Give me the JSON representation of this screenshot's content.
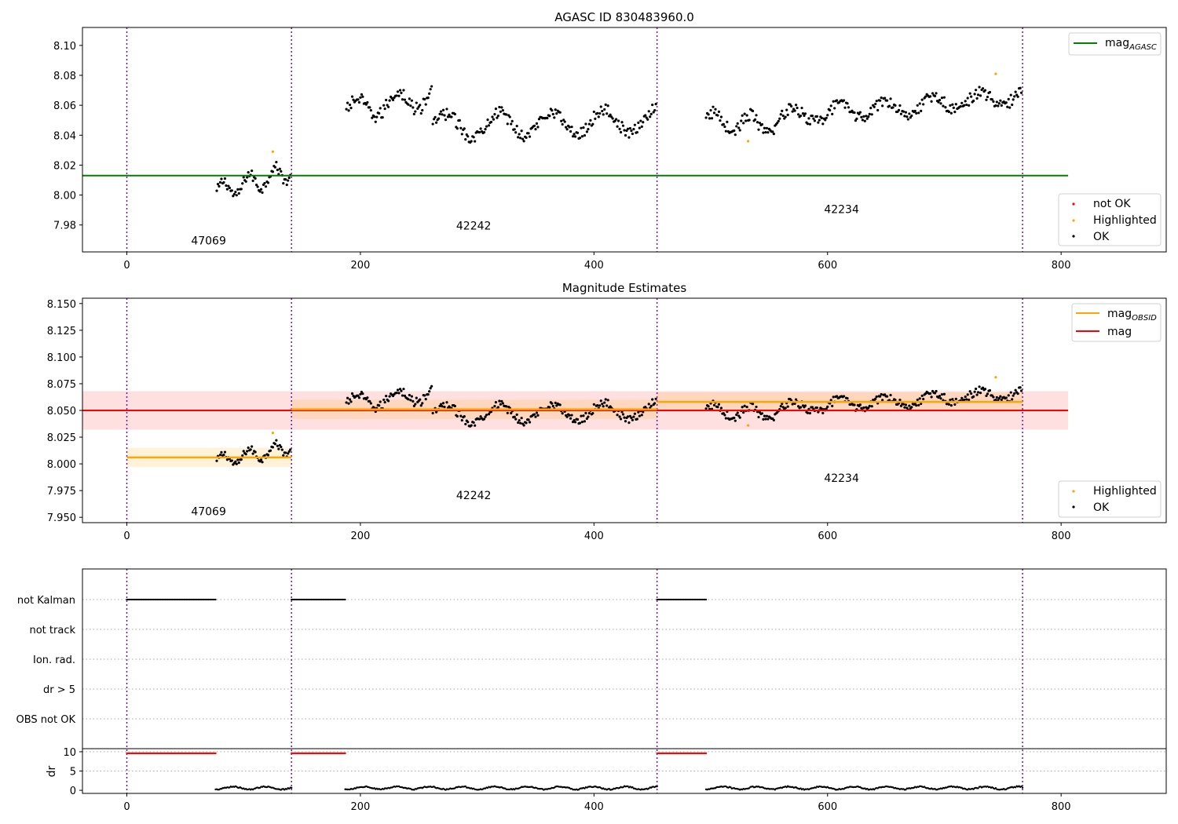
{
  "chart_data": [
    {
      "type": "scatter",
      "title": "AGASC ID 830483960.0",
      "xlabel": "",
      "ylabel": "",
      "xlim": [
        -38,
        890
      ],
      "ylim": [
        7.962,
        8.112
      ],
      "xticks": [
        0,
        200,
        400,
        600,
        800
      ],
      "yticks": [
        7.98,
        8.0,
        8.02,
        8.04,
        8.06,
        8.08,
        8.1
      ],
      "ytick_labels": [
        "7.98",
        "8.00",
        "8.02",
        "8.04",
        "8.06",
        "8.08",
        "8.10"
      ],
      "xtick_labels": [
        "0",
        "200",
        "400",
        "600",
        "800"
      ],
      "obsid_boundaries": [
        0,
        141,
        454,
        767
      ],
      "obsid_labels": [
        {
          "text": "47069",
          "x": 70,
          "y": 7.967
        },
        {
          "text": "42242",
          "x": 297,
          "y": 7.977
        },
        {
          "text": "42234",
          "x": 612,
          "y": 7.988
        }
      ],
      "lines": [
        {
          "name": "mag_AGASC",
          "color": "#008000",
          "x": [
            -38,
            806
          ],
          "y": [
            8.013,
            8.013
          ]
        }
      ],
      "series": [
        {
          "name": "OK",
          "color": "#000000",
          "segments": [
            {
              "x0": 77,
              "x1": 141,
              "base": 8.002,
              "trend": 0.014,
              "amp": 0.006,
              "period": 22,
              "noise": 0.0035
            },
            {
              "x0": 188,
              "x1": 262,
              "base": 8.056,
              "trend": 0.01,
              "amp": 0.007,
              "period": 35,
              "noise": 0.0045
            },
            {
              "x0": 262,
              "x1": 454,
              "base": 8.046,
              "trend": 0.004,
              "amp": 0.008,
              "period": 45,
              "noise": 0.004
            },
            {
              "x0": 496,
              "x1": 560,
              "base": 8.05,
              "trend": -0.004,
              "amp": 0.006,
              "period": 30,
              "noise": 0.004
            },
            {
              "x0": 560,
              "x1": 767,
              "base": 8.052,
              "trend": 0.014,
              "amp": 0.005,
              "period": 40,
              "noise": 0.004
            }
          ]
        },
        {
          "name": "Highlighted",
          "color": "#ffa500",
          "x": [
            125,
            532,
            744
          ],
          "y": [
            8.029,
            8.036,
            8.081
          ]
        }
      ],
      "legend_upper": {
        "position": "top-right",
        "entries": [
          {
            "label": "mag",
            "sub": "AGASC",
            "color": "#008000"
          }
        ]
      },
      "legend_lower": {
        "position": "lower-right",
        "entries": [
          {
            "label": "not OK",
            "color": "#ff0000"
          },
          {
            "label": "Highlighted",
            "color": "#ffa500"
          },
          {
            "label": "OK",
            "color": "#000000"
          }
        ]
      }
    },
    {
      "type": "scatter",
      "title": "Magnitude Estimates",
      "xlabel": "",
      "ylabel": "",
      "xlim": [
        -38,
        890
      ],
      "ylim": [
        7.945,
        8.155
      ],
      "xticks": [
        0,
        200,
        400,
        600,
        800
      ],
      "xtick_labels": [
        "0",
        "200",
        "400",
        "600",
        "800"
      ],
      "yticks": [
        7.95,
        7.975,
        8.0,
        8.025,
        8.05,
        8.075,
        8.1,
        8.125,
        8.15
      ],
      "ytick_labels": [
        "7.950",
        "7.975",
        "8.000",
        "8.025",
        "8.050",
        "8.075",
        "8.100",
        "8.125",
        "8.150"
      ],
      "obsid_boundaries": [
        0,
        141,
        454,
        767
      ],
      "obsid_labels": [
        {
          "text": "47069",
          "x": 70,
          "y": 7.952
        },
        {
          "text": "42242",
          "x": 297,
          "y": 7.967
        },
        {
          "text": "42234",
          "x": 612,
          "y": 7.983
        }
      ],
      "mag": {
        "value": 8.05,
        "band": [
          8.032,
          8.068
        ],
        "x": [
          -38,
          806
        ],
        "color": "#ff0000"
      },
      "mag_obsid": [
        {
          "x0": 0,
          "x1": 141,
          "value": 8.006,
          "band": [
            7.997,
            8.015
          ]
        },
        {
          "x0": 141,
          "x1": 454,
          "value": 8.051,
          "band": [
            8.042,
            8.06
          ]
        },
        {
          "x0": 454,
          "x1": 767,
          "value": 8.058,
          "band": [
            8.049,
            8.067
          ]
        }
      ],
      "legend_upper": {
        "position": "top-right",
        "entries": [
          {
            "label": "mag",
            "sub": "OBSID",
            "color": "#ffa500"
          },
          {
            "label": "mag",
            "sub": "",
            "color": "#ff0000"
          }
        ]
      },
      "legend_lower": {
        "position": "lower-right",
        "entries": [
          {
            "label": "Highlighted",
            "color": "#ffa500"
          },
          {
            "label": "OK",
            "color": "#000000"
          }
        ]
      }
    },
    {
      "type": "scatter",
      "title": "",
      "flag_rows": [
        "not Kalman",
        "not track",
        "Ion. rad.",
        "dr > 5",
        "OBS not OK"
      ],
      "flag_ranges": {
        "not Kalman": [
          [
            0,
            76
          ],
          [
            141,
            187
          ],
          [
            454,
            496
          ]
        ]
      },
      "dr_axis": {
        "ylabel": "dr",
        "yticks": [
          0,
          5,
          10
        ],
        "ytick_labels": [
          "0",
          "5",
          "10"
        ],
        "ylim": [
          -0.8,
          10.8
        ]
      },
      "dr_high_ranges": [
        [
          0,
          76
        ],
        [
          141,
          187
        ],
        [
          454,
          496
        ]
      ],
      "dr_high_value": 9.6,
      "dr_low_ranges": [
        [
          76,
          141
        ],
        [
          187,
          454
        ],
        [
          496,
          767
        ]
      ],
      "dr_low_value": 0.6,
      "xlim": [
        -38,
        890
      ],
      "xticks": [
        0,
        200,
        400,
        600,
        800
      ],
      "xtick_labels": [
        "0",
        "200",
        "400",
        "600",
        "800"
      ],
      "obsid_boundaries": [
        0,
        141,
        454,
        767
      ]
    }
  ]
}
